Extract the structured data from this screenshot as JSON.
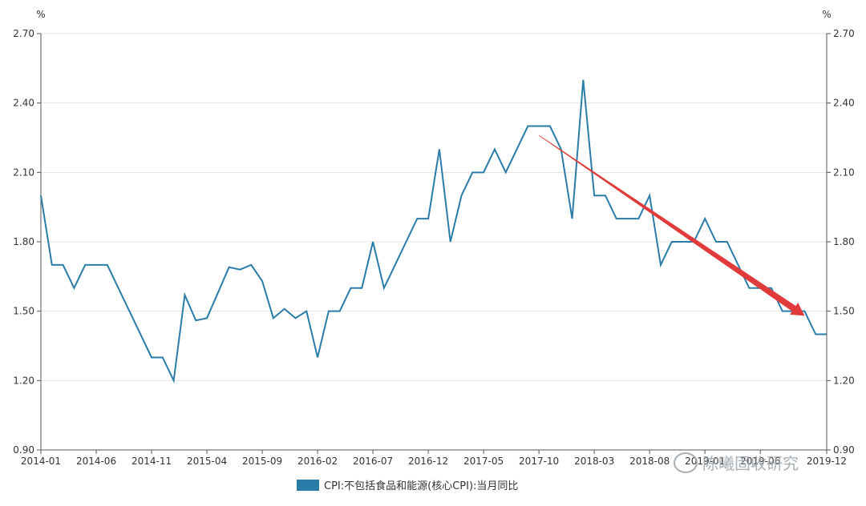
{
  "chart_data": {
    "type": "line",
    "unit_left": "%",
    "unit_right": "%",
    "y_ticks": [
      "0.90",
      "1.20",
      "1.50",
      "1.80",
      "2.10",
      "2.40",
      "2.70"
    ],
    "ylim": [
      0.9,
      2.7
    ],
    "x_tick_labels": [
      "2014-01",
      "2014-06",
      "2014-11",
      "2015-04",
      "2015-09",
      "2016-02",
      "2016-07",
      "2016-12",
      "2017-05",
      "2017-10",
      "2018-03",
      "2018-08",
      "2019-01",
      "2019-06",
      "2019-12"
    ],
    "series": [
      {
        "name": "CPI:不包括食品和能源(核心CPI):当月同比",
        "color": "#2a7ca8",
        "start": "2014-01",
        "values": [
          2.0,
          1.7,
          1.7,
          1.6,
          1.7,
          1.7,
          1.7,
          1.6,
          1.5,
          1.4,
          1.3,
          1.3,
          1.2,
          1.57,
          1.46,
          1.47,
          1.58,
          1.69,
          1.68,
          1.7,
          1.63,
          1.47,
          1.51,
          1.47,
          1.5,
          1.3,
          1.5,
          1.5,
          1.6,
          1.6,
          1.8,
          1.6,
          1.7,
          1.8,
          1.9,
          1.9,
          2.2,
          1.8,
          2.0,
          2.1,
          2.1,
          2.2,
          2.1,
          2.2,
          2.3,
          2.3,
          2.3,
          2.2,
          1.9,
          2.5,
          2.0,
          2.0,
          1.9,
          1.9,
          1.9,
          2.0,
          1.7,
          1.8,
          1.8,
          1.8,
          1.9,
          1.8,
          1.8,
          1.7,
          1.6,
          1.6,
          1.6,
          1.5,
          1.5,
          1.5,
          1.4,
          1.4
        ]
      }
    ],
    "annotation_arrow": {
      "from": [
        "2017-10",
        2.26
      ],
      "to": [
        "2019-10",
        1.48
      ],
      "color": "#e03a3a"
    },
    "grid": true
  },
  "legend": {
    "label": "CPI:不包括食品和能源(核心CPI):当月同比"
  },
  "watermark": {
    "text": "陈曦固收研究"
  }
}
